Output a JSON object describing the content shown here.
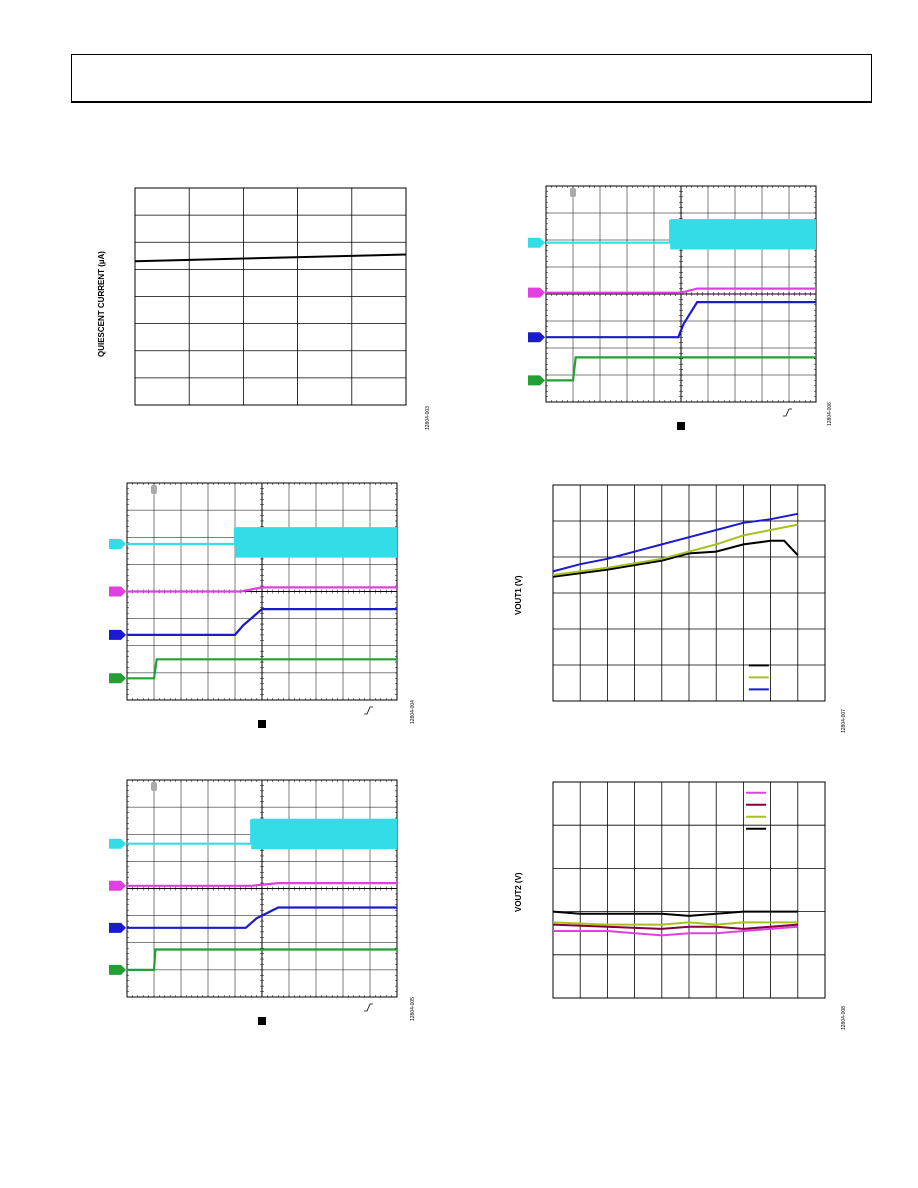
{
  "page": {
    "figures": [
      {
        "id": "fig-quiescent",
        "type": "line",
        "ylabel": "QUIESCENT CURRENT (µA)",
        "code": "12804-003"
      },
      {
        "id": "fig-scope-1",
        "type": "scope",
        "code": "12804-006"
      },
      {
        "id": "fig-scope-2",
        "type": "scope",
        "code": "12804-004"
      },
      {
        "id": "fig-vout1",
        "type": "line",
        "ylabel": "VOUT1 (V)",
        "code": "12804-007"
      },
      {
        "id": "fig-scope-3",
        "type": "scope",
        "code": "12804-005"
      },
      {
        "id": "fig-vout2",
        "type": "line",
        "ylabel": "VOUT2 (V)",
        "code": "12804-008"
      }
    ]
  },
  "chart_data": [
    {
      "type": "line",
      "title": "",
      "ylabel": "QUIESCENT CURRENT (µA)",
      "grid": true,
      "xlim": [
        0,
        5
      ],
      "ylim": [
        0,
        8
      ],
      "series": [
        {
          "color": "#000000",
          "x": [
            0,
            5
          ],
          "y": [
            5.3,
            5.55
          ]
        }
      ]
    },
    {
      "type": "line",
      "title": "",
      "ylabel": "",
      "subtype": "oscilloscope",
      "xlim": [
        0,
        10
      ],
      "ylim": [
        0,
        8
      ],
      "markers": [
        "cyan",
        "magenta",
        "blue",
        "green"
      ],
      "series": [
        {
          "color": "#33dde8",
          "x": [
            0,
            4.6,
            4.6,
            10
          ],
          "y": [
            5.9,
            5.9,
            6.7,
            6.7
          ],
          "noise": 0.45
        },
        {
          "color": "#e040e0",
          "x": [
            0,
            5.0,
            5.6,
            10
          ],
          "y": [
            4.05,
            4.05,
            4.2,
            4.2
          ]
        },
        {
          "color": "#1a1ad0",
          "x": [
            0,
            4.9,
            5.1,
            5.6,
            10
          ],
          "y": [
            2.4,
            2.4,
            2.9,
            3.7,
            3.7
          ]
        },
        {
          "color": "#22a033",
          "x": [
            0,
            1.0,
            1.1,
            10
          ],
          "y": [
            0.8,
            0.8,
            1.65,
            1.65
          ]
        }
      ]
    },
    {
      "type": "line",
      "title": "",
      "ylabel": "",
      "subtype": "oscilloscope",
      "xlim": [
        0,
        10
      ],
      "ylim": [
        0,
        8
      ],
      "markers": [
        "cyan",
        "magenta",
        "blue",
        "green"
      ],
      "series": [
        {
          "color": "#33dde8",
          "x": [
            0,
            4.0,
            4.0,
            10
          ],
          "y": [
            5.75,
            5.75,
            6.3,
            6.3
          ],
          "noise": 0.45
        },
        {
          "color": "#e040e0",
          "x": [
            0,
            4.2,
            5.0,
            10
          ],
          "y": [
            4.0,
            4.0,
            4.15,
            4.15
          ]
        },
        {
          "color": "#1a1ad0",
          "x": [
            0,
            4.0,
            4.3,
            5.0,
            10
          ],
          "y": [
            2.4,
            2.4,
            2.75,
            3.35,
            3.35
          ]
        },
        {
          "color": "#22a033",
          "x": [
            0,
            1.0,
            1.1,
            10
          ],
          "y": [
            0.8,
            0.8,
            1.5,
            1.5
          ]
        }
      ]
    },
    {
      "type": "line",
      "title": "",
      "ylabel": "VOUT1 (V)",
      "grid": true,
      "xlim": [
        0,
        10
      ],
      "ylim": [
        0,
        6
      ],
      "legend": "bottom-right",
      "series": [
        {
          "color": "#000000",
          "x": [
            0,
            2,
            4,
            5,
            6,
            7,
            8,
            8.5,
            9
          ],
          "y": [
            3.45,
            3.65,
            3.9,
            4.1,
            4.15,
            4.35,
            4.45,
            4.45,
            4.05
          ]
        },
        {
          "color": "#a8c020",
          "x": [
            0,
            2,
            4,
            5,
            6,
            7,
            8,
            9
          ],
          "y": [
            3.5,
            3.7,
            3.95,
            4.15,
            4.35,
            4.6,
            4.75,
            4.9
          ]
        },
        {
          "color": "#1a1ad0",
          "x": [
            0,
            1,
            2,
            3,
            4,
            5,
            6,
            7,
            8,
            9
          ],
          "y": [
            3.6,
            3.8,
            3.95,
            4.15,
            4.35,
            4.55,
            4.75,
            4.95,
            5.05,
            5.2
          ]
        }
      ]
    },
    {
      "type": "scope",
      "title": "",
      "ylabel": "",
      "subtype": "oscilloscope",
      "xlim": [
        0,
        10
      ],
      "ylim": [
        0,
        8
      ],
      "markers": [
        "cyan",
        "magenta",
        "blue",
        "green"
      ],
      "series": [
        {
          "color": "#33dde8",
          "x": [
            0,
            4.6,
            4.6,
            10
          ],
          "y": [
            5.65,
            5.65,
            6.5,
            6.5
          ],
          "noise": 0.45
        },
        {
          "color": "#e040e0",
          "x": [
            0,
            4.6,
            5.6,
            10
          ],
          "y": [
            4.1,
            4.1,
            4.2,
            4.2
          ]
        },
        {
          "color": "#1a1ad0",
          "x": [
            0,
            4.4,
            4.8,
            5.6,
            10
          ],
          "y": [
            2.55,
            2.55,
            2.9,
            3.3,
            3.3
          ]
        },
        {
          "color": "#22a033",
          "x": [
            0,
            1.0,
            1.05,
            10
          ],
          "y": [
            1.0,
            1.0,
            1.75,
            1.75
          ]
        }
      ]
    },
    {
      "type": "line",
      "title": "",
      "ylabel": "VOUT2 (V)",
      "grid": true,
      "xlim": [
        0,
        10
      ],
      "ylim": [
        0,
        5
      ],
      "legend": "top-right",
      "series": [
        {
          "color": "#e040e0",
          "x": [
            0,
            1,
            2,
            3,
            4,
            5,
            6,
            7,
            8,
            9
          ],
          "y": [
            1.55,
            1.55,
            1.55,
            1.5,
            1.45,
            1.5,
            1.5,
            1.55,
            1.6,
            1.65
          ]
        },
        {
          "color": "#800040",
          "x": [
            0,
            2,
            4,
            5,
            6,
            7,
            8,
            9
          ],
          "y": [
            1.7,
            1.65,
            1.6,
            1.65,
            1.65,
            1.6,
            1.65,
            1.7
          ]
        },
        {
          "color": "#a8c020",
          "x": [
            0,
            2,
            4,
            5,
            6,
            7,
            8,
            9
          ],
          "y": [
            1.75,
            1.7,
            1.7,
            1.75,
            1.7,
            1.75,
            1.75,
            1.75
          ]
        },
        {
          "color": "#000000",
          "x": [
            0,
            1,
            2,
            3,
            4,
            5,
            6,
            7,
            8,
            9
          ],
          "y": [
            2.0,
            1.95,
            1.95,
            1.95,
            1.95,
            1.9,
            1.95,
            2.0,
            2.0,
            2.0
          ]
        }
      ]
    }
  ]
}
